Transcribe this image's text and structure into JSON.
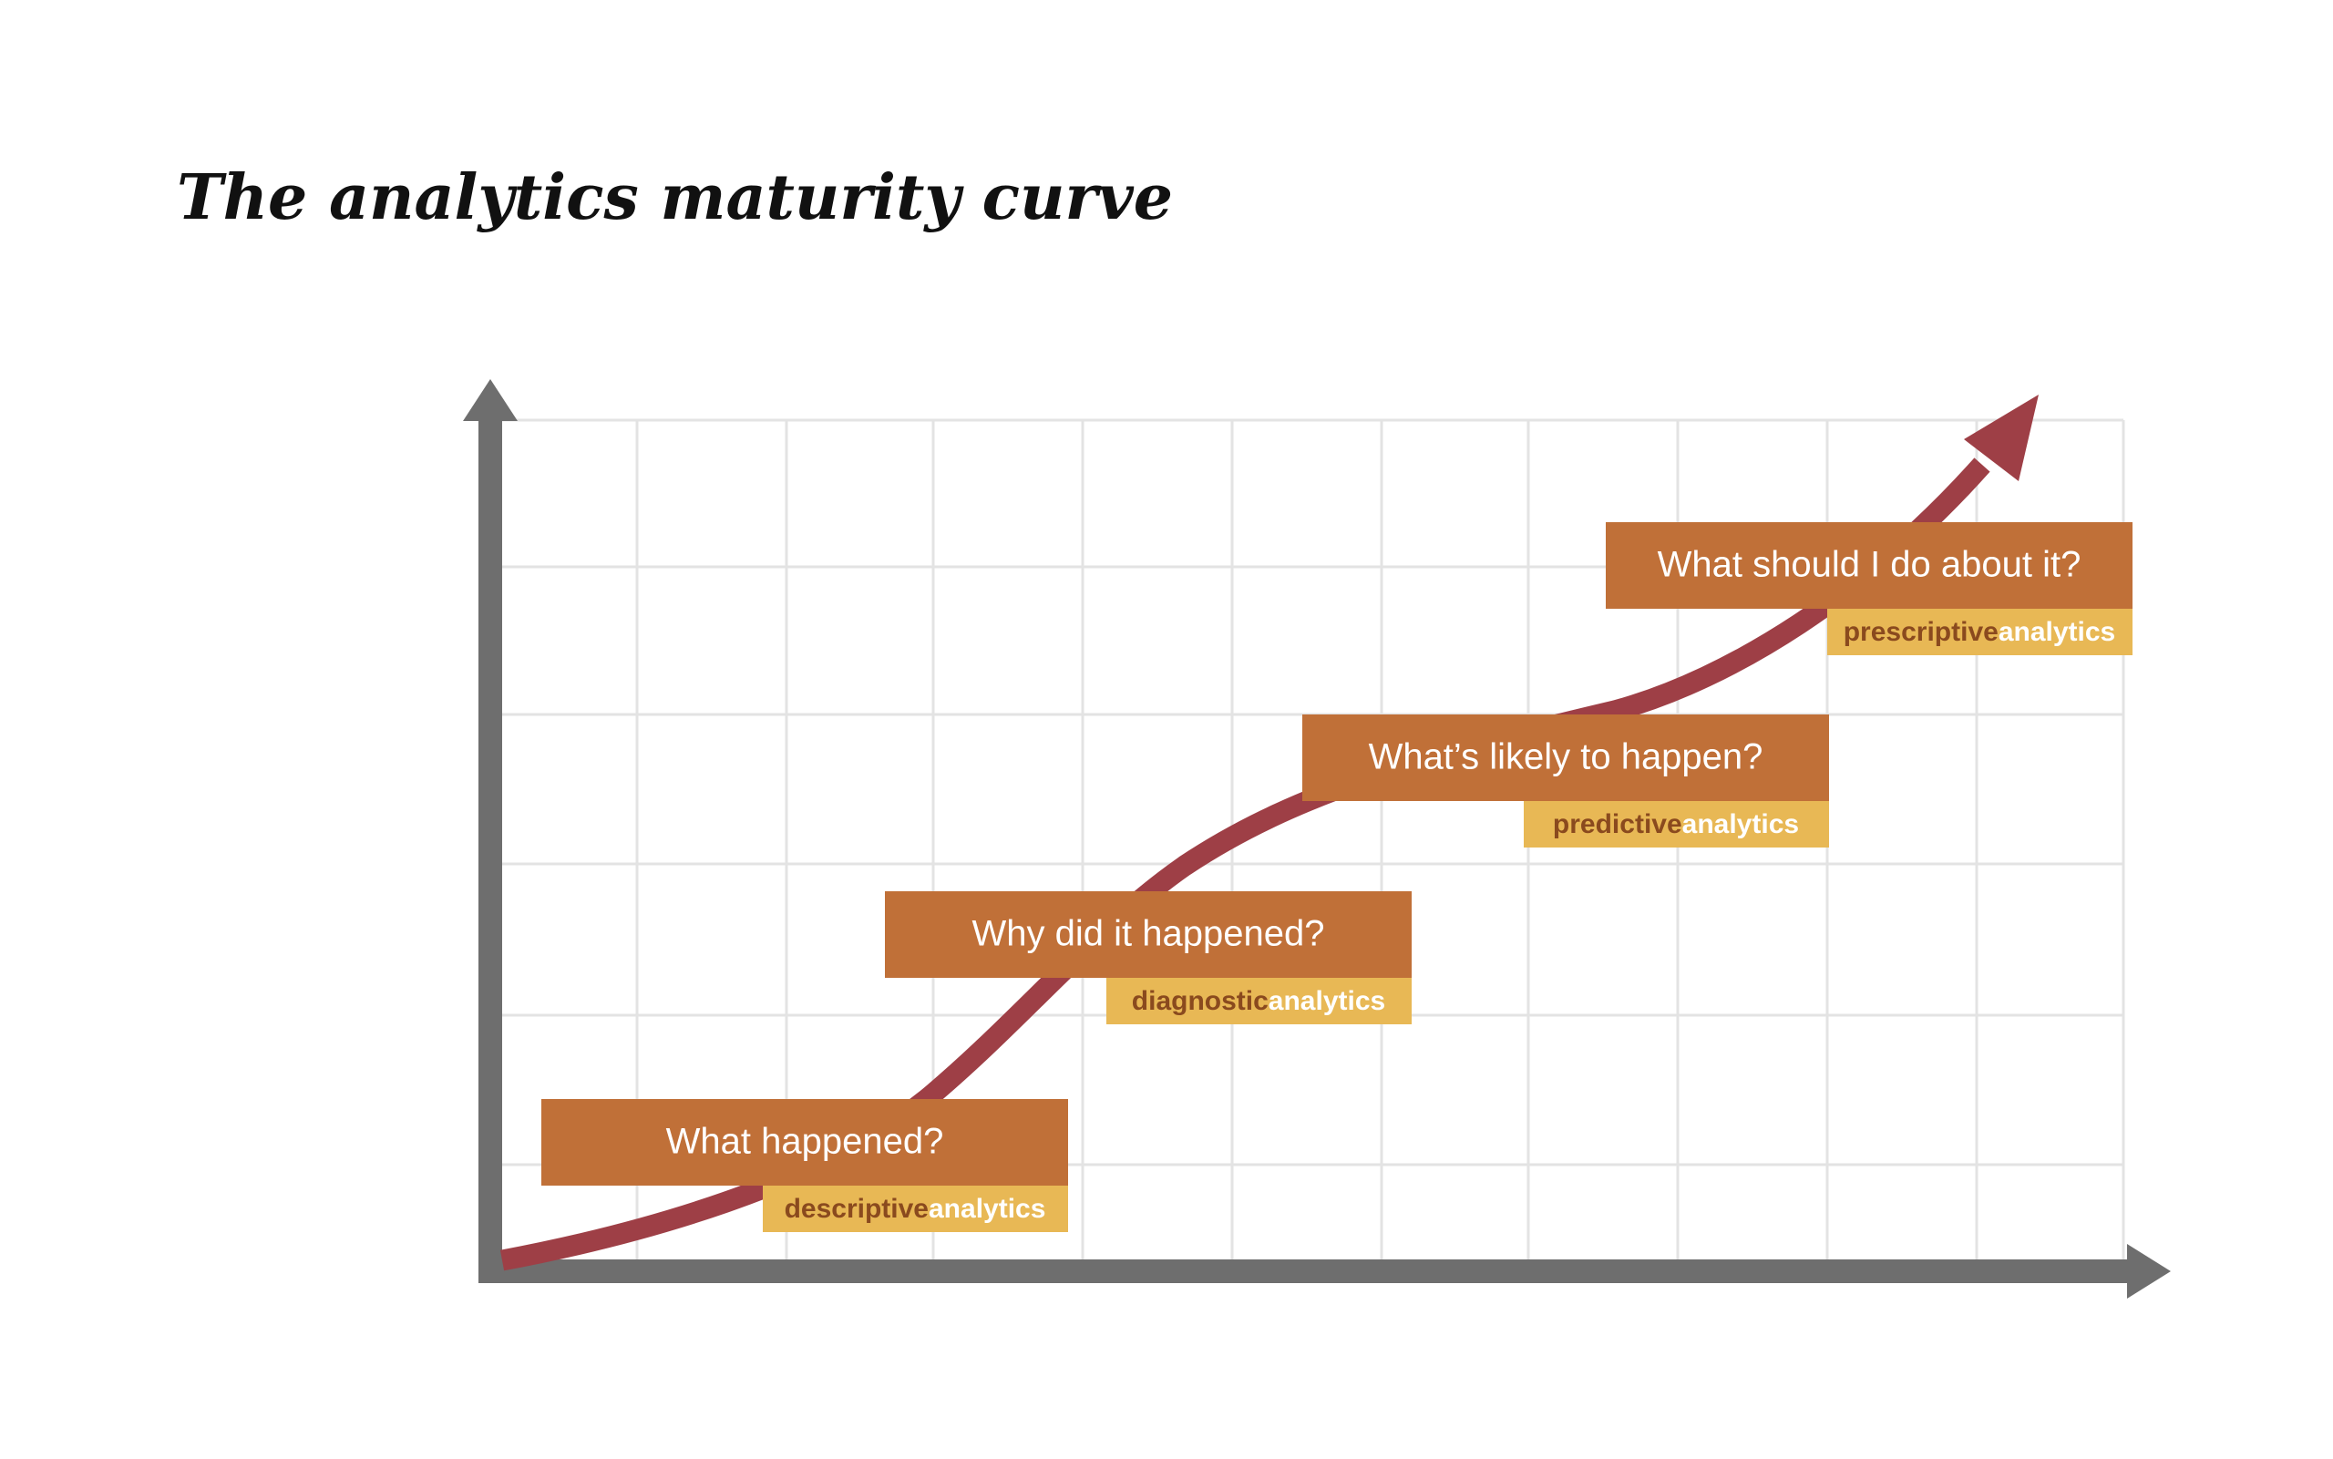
{
  "title": "The analytics maturity curve",
  "stages": [
    {
      "question": "What happened?",
      "qualifier": "descriptive",
      "suffix": "analytics"
    },
    {
      "question": "Why did it happened?",
      "qualifier": "diagnostic",
      "suffix": "analytics"
    },
    {
      "question": "What’s likely to happen?",
      "qualifier": "predictive",
      "suffix": "analytics"
    },
    {
      "question": "What should I do about it?",
      "qualifier": "prescriptive",
      "suffix": "analytics"
    }
  ]
}
